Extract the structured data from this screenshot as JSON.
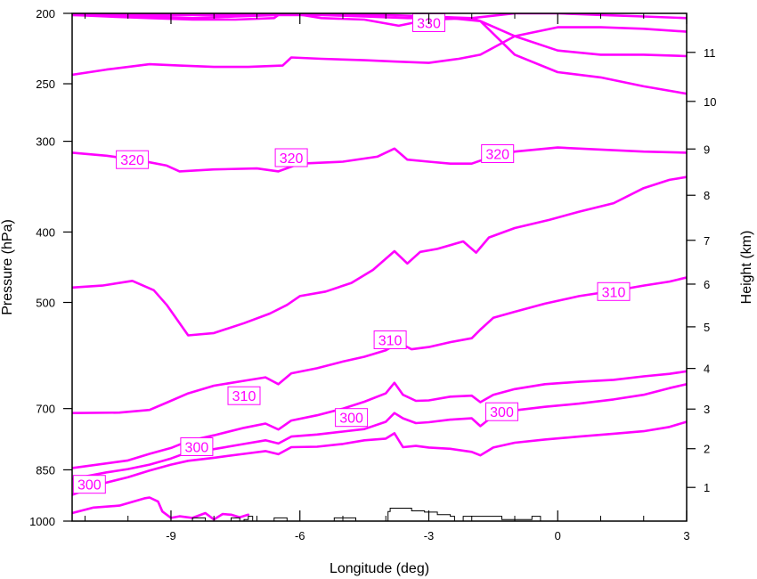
{
  "chart_data": {
    "type": "line",
    "title": "",
    "xlabel": "Longitude (deg)",
    "ylabel": "Pressure (hPa)",
    "y2label": "Height (km)",
    "xlim": [
      -11.3,
      3.0
    ],
    "ylim": [
      1000,
      200
    ],
    "y_scale": "log",
    "x_ticks": [
      -9,
      -6,
      -3,
      0,
      3
    ],
    "x_tick_labels": [
      "-9",
      "-6",
      "-3",
      "0",
      "3"
    ],
    "y_ticks": [
      200,
      250,
      300,
      400,
      500,
      700,
      850,
      1000
    ],
    "y_tick_labels": [
      "200",
      "250",
      "300",
      "400",
      "500",
      "700",
      "850",
      "1000"
    ],
    "y2_ticks": [
      1,
      2,
      3,
      4,
      5,
      6,
      7,
      8,
      9,
      10,
      11
    ],
    "y2_tick_labels": [
      "1",
      "2",
      "3",
      "4",
      "5",
      "6",
      "7",
      "8",
      "9",
      "10",
      "11"
    ],
    "contour_color": "#ff00ff",
    "terrain_color": "#000000",
    "grid": false,
    "series": [
      {
        "name": "contour-330-a",
        "x": [
          -11.3,
          -10.5,
          -9.5,
          -8.5,
          -7.5,
          -6.6,
          -6.4,
          -5.5,
          -4.5,
          -3.7,
          -3.0,
          -2.0,
          -1.0,
          0.0,
          1.0,
          2.0,
          3.0
        ],
        "y": [
          201,
          202,
          203,
          204,
          204,
          203,
          199,
          203,
          204,
          208,
          204,
          203,
          200,
          200,
          201,
          202,
          203
        ]
      },
      {
        "name": "contour-330-b",
        "x": [
          -11.3,
          -10.5,
          -9.5,
          -8.8,
          -8.0,
          -7.2,
          -6.4,
          -6.2,
          -5.5,
          -4.5,
          -3.8,
          -3.0,
          -2.3,
          -1.8,
          -1.0,
          0.0,
          1.0,
          2.0,
          3.0
        ],
        "y": [
          243,
          239,
          235,
          236,
          237,
          237,
          236,
          230,
          231,
          232,
          233,
          234,
          231,
          228,
          215,
          209,
          209,
          210,
          212
        ]
      },
      {
        "name": "contour-330-c",
        "x": [
          -11.3,
          -10.5,
          -9.5,
          -8.5,
          -7.5,
          -6.5,
          -5.5,
          -4.5,
          -3.5,
          -2.5,
          -1.8,
          -1.0,
          0.0,
          1.0,
          2.0,
          3.0
        ],
        "y": [
          201,
          201,
          202,
          203,
          202,
          201,
          201,
          202,
          203,
          203,
          205,
          215,
          225,
          228,
          228,
          229
        ]
      },
      {
        "name": "contour-330-d",
        "x": [
          -11.3,
          -10.0,
          -9.0,
          -8.0,
          -7.0,
          -6.3,
          -5.0,
          -4.0,
          -3.0,
          -2.0,
          -1.8,
          -1.0,
          0.0,
          1.0,
          2.0,
          3.0
        ],
        "y": [
          201,
          201,
          201,
          201,
          201,
          201,
          201,
          201,
          202,
          203,
          205,
          228,
          241,
          245,
          252,
          258
        ]
      },
      {
        "name": "contour-320",
        "x": [
          -11.3,
          -10.5,
          -9.7,
          -9.1,
          -8.8,
          -8.0,
          -7.0,
          -6.5,
          -6.0,
          -5.0,
          -4.2,
          -3.8,
          -3.5,
          -3.0,
          -2.5,
          -2.0,
          -1.6,
          -1.0,
          0.0,
          1.0,
          2.0,
          3.0
        ],
        "y": [
          311,
          314,
          319,
          324,
          330,
          328,
          327,
          330,
          322,
          320,
          315,
          307,
          318,
          320,
          322,
          322,
          316,
          310,
          306,
          308,
          310,
          311
        ]
      },
      {
        "name": "contour-310-upper",
        "x": [
          -11.3,
          -10.6,
          -9.9,
          -9.4,
          -9.1,
          -8.6,
          -8.0,
          -7.3,
          -6.7,
          -6.3,
          -6.0,
          -5.4,
          -4.8,
          -4.3,
          -3.8,
          -3.5,
          -3.2,
          -2.8,
          -2.2,
          -1.9,
          -1.6,
          -1.0,
          -0.2,
          0.5,
          1.3,
          2.0,
          2.6,
          3.0
        ],
        "y": [
          477,
          474,
          467,
          481,
          504,
          555,
          551,
          534,
          518,
          504,
          490,
          483,
          470,
          451,
          425,
          442,
          426,
          422,
          412,
          427,
          407,
          395,
          385,
          375,
          365,
          348,
          339,
          336
        ]
      },
      {
        "name": "contour-310-mid",
        "x": [
          -11.3,
          -10.2,
          -9.5,
          -9.1,
          -8.6,
          -8.0,
          -7.3,
          -6.8,
          -6.5,
          -6.2,
          -5.6,
          -5.0,
          -4.5,
          -4.0,
          -3.7,
          -3.4,
          -3.0,
          -2.5,
          -2.0,
          -1.8,
          -1.5,
          -1.0,
          -0.3,
          0.5,
          1.3,
          2.0,
          2.6,
          3.0
        ],
        "y": [
          710,
          709,
          703,
          687,
          667,
          651,
          641,
          634,
          648,
          626,
          616,
          603,
          594,
          582,
          568,
          580,
          576,
          567,
          560,
          545,
          525,
          515,
          502,
          490,
          482,
          474,
          468,
          462
        ]
      },
      {
        "name": "contour-305-lower",
        "x": [
          -11.3,
          -10.0,
          -9.5,
          -9.0,
          -8.6,
          -8.0,
          -7.3,
          -6.8,
          -6.5,
          -6.2,
          -5.6,
          -5.0,
          -4.5,
          -4.0,
          -3.8,
          -3.6,
          -3.3,
          -3.0,
          -2.5,
          -2.0,
          -1.8,
          -1.5,
          -1.0,
          -0.3,
          0.5,
          1.3,
          2.0,
          2.6,
          3.0
        ],
        "y": [
          845,
          825,
          808,
          793,
          776,
          762,
          744,
          734,
          748,
          727,
          715,
          700,
          685,
          667,
          645,
          670,
          683,
          682,
          674,
          672,
          686,
          670,
          658,
          648,
          643,
          639,
          632,
          627,
          622
        ]
      },
      {
        "name": "contour-300",
        "x": [
          -11.3,
          -10.5,
          -10.0,
          -9.5,
          -9.0,
          -8.6,
          -8.0,
          -7.3,
          -6.8,
          -6.5,
          -6.2,
          -5.6,
          -5.0,
          -4.5,
          -4.0,
          -3.8,
          -3.6,
          -3.3,
          -3.0,
          -2.5,
          -2.0,
          -1.8,
          -1.5,
          -1.0,
          -0.3,
          0.5,
          1.3,
          2.0,
          2.6,
          3.0
        ],
        "y": [
          875,
          857,
          848,
          836,
          820,
          804,
          796,
          783,
          774,
          782,
          765,
          760,
          753,
          747,
          730,
          710,
          722,
          733,
          731,
          725,
          722,
          740,
          716,
          704,
          696,
          689,
          680,
          670,
          656,
          648
        ]
      },
      {
        "name": "contour-295",
        "x": [
          -11.3,
          -10.5,
          -10.0,
          -9.5,
          -9.0,
          -8.6,
          -8.0,
          -7.3,
          -6.8,
          -6.5,
          -6.2,
          -5.6,
          -5.0,
          -4.5,
          -4.0,
          -3.8,
          -3.6,
          -3.3,
          -3.0,
          -2.5,
          -2.0,
          -1.8,
          -1.5,
          -1.0,
          -0.3,
          0.5,
          1.3,
          2.0,
          2.6,
          3.0
        ],
        "y": [
          920,
          885,
          870,
          852,
          836,
          826,
          818,
          808,
          801,
          809,
          791,
          790,
          783,
          774,
          770,
          757,
          791,
          788,
          792,
          795,
          803,
          812,
          792,
          780,
          772,
          765,
          758,
          752,
          742,
          730
        ]
      },
      {
        "name": "contour-surface",
        "x": [
          -11.3,
          -10.8,
          -10.2,
          -9.6,
          -9.5,
          -9.3,
          -9.2,
          -9.0,
          -8.8,
          -8.5,
          -8.2,
          -8.0,
          -7.8,
          -7.6,
          -7.4,
          -7.2
        ],
        "y": [
          975,
          958,
          952,
          930,
          928,
          940,
          970,
          990,
          985,
          990,
          975,
          995,
          978,
          980,
          988,
          980
        ]
      }
    ],
    "contour_labels": [
      {
        "text": "330",
        "x": -3.0,
        "y": 206
      },
      {
        "text": "320",
        "x": -9.9,
        "y": 318
      },
      {
        "text": "320",
        "x": -6.2,
        "y": 316
      },
      {
        "text": "320",
        "x": -1.4,
        "y": 312
      },
      {
        "text": "310",
        "x": 1.3,
        "y": 483
      },
      {
        "text": "310",
        "x": -3.9,
        "y": 563
      },
      {
        "text": "310",
        "x": -7.3,
        "y": 672
      },
      {
        "text": "300",
        "x": -4.8,
        "y": 720
      },
      {
        "text": "300",
        "x": -1.3,
        "y": 707
      },
      {
        "text": "300",
        "x": -8.4,
        "y": 790
      },
      {
        "text": "300",
        "x": -10.9,
        "y": 890
      }
    ],
    "terrain": {
      "name": "orography",
      "x": [
        -8.6,
        -8.5,
        -8.3,
        -8.2,
        -7.8,
        -7.6,
        -7.5,
        -7.4,
        -7.3,
        -7.2,
        -7.1,
        -6.8,
        -6.6,
        -6.4,
        -6.3,
        -5.3,
        -5.2,
        -4.8,
        -4.7,
        -4.0,
        -3.95,
        -3.9,
        -3.7,
        -3.4,
        -3.1,
        -2.8,
        -2.5,
        -2.4,
        -2.2,
        -1.6,
        -1.3,
        -0.7,
        -0.6,
        -0.5,
        -0.4
      ],
      "y": [
        1000,
        990,
        990,
        1000,
        1000,
        990,
        990,
        1000,
        995,
        985,
        1000,
        1000,
        990,
        990,
        1000,
        1000,
        990,
        990,
        1000,
        1000,
        970,
        960,
        960,
        968,
        972,
        980,
        985,
        1000,
        985,
        985,
        995,
        995,
        985,
        985,
        1000
      ]
    }
  }
}
